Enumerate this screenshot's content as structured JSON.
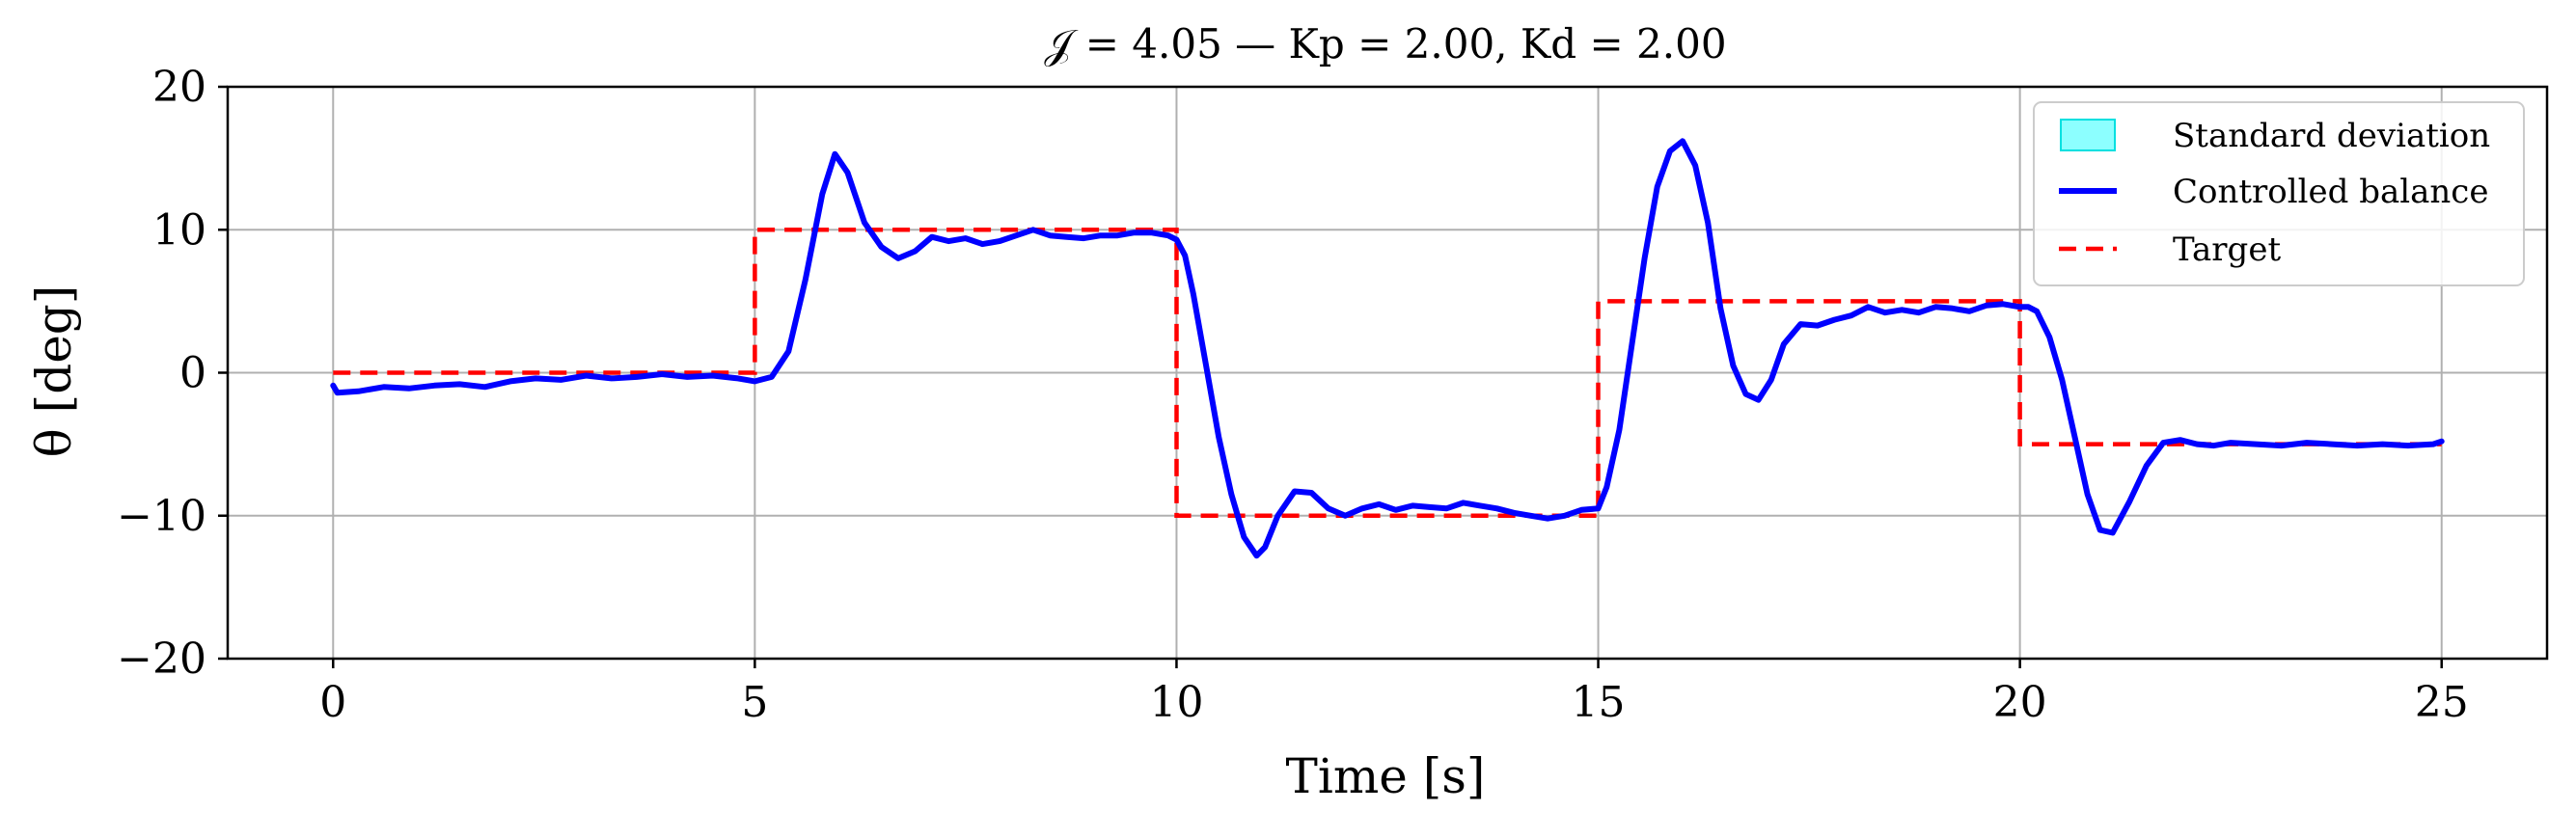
{
  "chart_data": {
    "type": "line",
    "title": "𝒥 = 4.05 — Kp = 2.00, Kd = 2.00",
    "xlabel": "Time [s]",
    "ylabel": "θ [deg]",
    "xlim": [
      -1.25,
      26.25
    ],
    "ylim": [
      -20,
      20
    ],
    "xticks": [
      0,
      5,
      10,
      15,
      20,
      25
    ],
    "yticks": [
      -20,
      -10,
      0,
      10,
      20
    ],
    "xtick_labels": [
      "0",
      "5",
      "10",
      "15",
      "20",
      "25"
    ],
    "ytick_labels": [
      "−20",
      "−10",
      "0",
      "10",
      "20"
    ],
    "grid": true,
    "legend_position": "upper right",
    "legend": [
      "Standard deviation",
      "Controlled balance",
      "Target"
    ],
    "colors": {
      "std": "#66ffff",
      "std_edge": "#00e0e0",
      "balance": "#0000ff",
      "target": "#ff0000",
      "grid": "#b0b0b0"
    },
    "series": [
      {
        "name": "Controlled balance",
        "style": "solid",
        "x": [
          0.0,
          0.05,
          0.3,
          0.6,
          0.9,
          1.2,
          1.5,
          1.8,
          2.1,
          2.4,
          2.7,
          3.0,
          3.3,
          3.6,
          3.9,
          4.2,
          4.5,
          4.8,
          5.0,
          5.2,
          5.4,
          5.6,
          5.8,
          5.95,
          6.1,
          6.3,
          6.5,
          6.7,
          6.9,
          7.1,
          7.3,
          7.5,
          7.7,
          7.9,
          8.1,
          8.3,
          8.5,
          8.7,
          8.9,
          9.1,
          9.3,
          9.5,
          9.7,
          9.9,
          10.0,
          10.1,
          10.2,
          10.35,
          10.5,
          10.65,
          10.8,
          10.95,
          11.05,
          11.2,
          11.4,
          11.6,
          11.8,
          12.0,
          12.2,
          12.4,
          12.6,
          12.8,
          13.0,
          13.2,
          13.4,
          13.6,
          13.8,
          14.0,
          14.2,
          14.4,
          14.6,
          14.8,
          15.0,
          15.1,
          15.25,
          15.4,
          15.55,
          15.7,
          15.85,
          16.0,
          16.15,
          16.3,
          16.45,
          16.6,
          16.75,
          16.9,
          17.05,
          17.2,
          17.4,
          17.6,
          17.8,
          18.0,
          18.2,
          18.4,
          18.6,
          18.8,
          19.0,
          19.2,
          19.4,
          19.6,
          19.8,
          20.0,
          20.1,
          20.2,
          20.35,
          20.5,
          20.65,
          20.8,
          20.95,
          21.1,
          21.3,
          21.5,
          21.7,
          21.9,
          22.1,
          22.3,
          22.5,
          22.8,
          23.1,
          23.4,
          23.7,
          24.0,
          24.3,
          24.6,
          24.9,
          25.0
        ],
        "y": [
          -0.9,
          -1.4,
          -1.3,
          -1.0,
          -1.1,
          -0.9,
          -0.8,
          -1.0,
          -0.6,
          -0.4,
          -0.5,
          -0.2,
          -0.4,
          -0.3,
          -0.1,
          -0.3,
          -0.2,
          -0.4,
          -0.6,
          -0.3,
          1.5,
          6.5,
          12.5,
          15.3,
          14.0,
          10.5,
          8.8,
          8.0,
          8.5,
          9.5,
          9.2,
          9.4,
          9.0,
          9.2,
          9.6,
          10.0,
          9.6,
          9.5,
          9.4,
          9.6,
          9.6,
          9.8,
          9.8,
          9.6,
          9.3,
          8.2,
          5.5,
          0.5,
          -4.5,
          -8.5,
          -11.5,
          -12.8,
          -12.2,
          -10.0,
          -8.3,
          -8.4,
          -9.5,
          -10.0,
          -9.5,
          -9.2,
          -9.6,
          -9.3,
          -9.4,
          -9.5,
          -9.1,
          -9.3,
          -9.5,
          -9.8,
          -10.0,
          -10.2,
          -10.0,
          -9.6,
          -9.5,
          -8.0,
          -4.0,
          2.0,
          8.0,
          13.0,
          15.5,
          16.2,
          14.5,
          10.5,
          4.5,
          0.5,
          -1.5,
          -1.9,
          -0.5,
          2.0,
          3.4,
          3.3,
          3.7,
          4.0,
          4.6,
          4.2,
          4.4,
          4.2,
          4.6,
          4.5,
          4.3,
          4.7,
          4.8,
          4.6,
          4.6,
          4.3,
          2.5,
          -0.5,
          -4.5,
          -8.5,
          -11.0,
          -11.2,
          -9.0,
          -6.5,
          -4.9,
          -4.7,
          -5.0,
          -5.1,
          -4.9,
          -5.0,
          -5.1,
          -4.9,
          -5.0,
          -5.1,
          -5.0,
          -5.1,
          -5.0,
          -4.8
        ]
      },
      {
        "name": "Target",
        "style": "dashed",
        "x": [
          0,
          5,
          5,
          10,
          10,
          15,
          15,
          20,
          20,
          25
        ],
        "y": [
          0,
          0,
          10,
          10,
          -10,
          -10,
          5,
          5,
          -5,
          -5
        ]
      }
    ]
  }
}
